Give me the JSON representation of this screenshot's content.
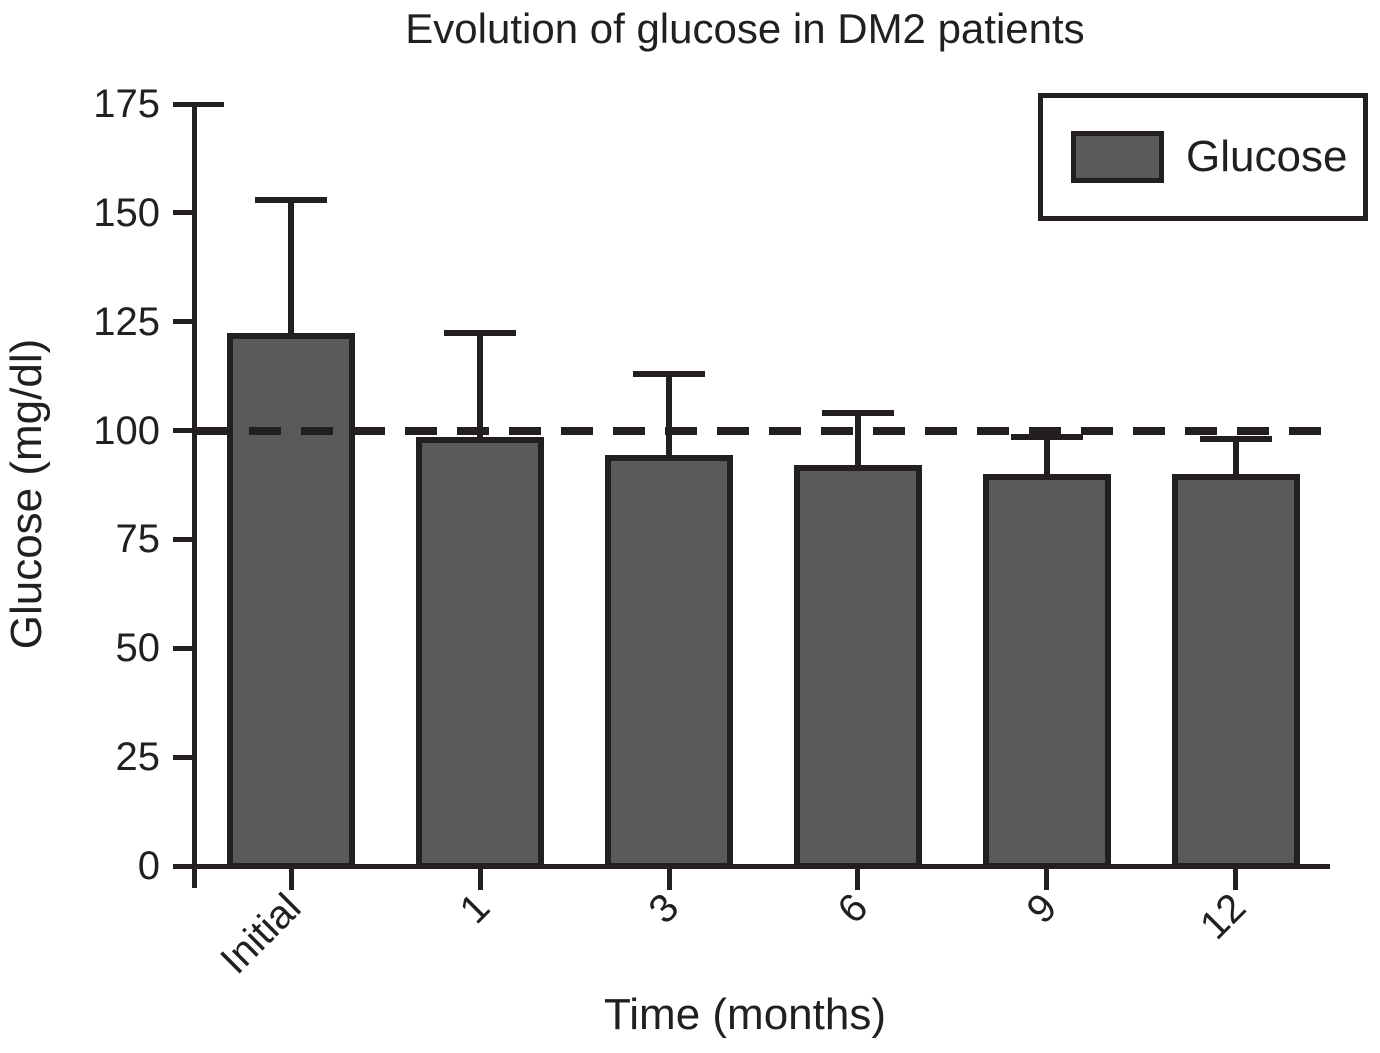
{
  "chart_data": {
    "type": "bar",
    "title": "Evolution of glucose in DM2 patients",
    "xlabel": "Time (months)",
    "ylabel": "Glucose (mg/dl)",
    "categories": [
      "Initial",
      "1",
      "3",
      "6",
      "9",
      "12"
    ],
    "series": [
      {
        "name": "Glucose",
        "values": [
          122.5,
          98.5,
          94.5,
          92,
          90,
          90
        ],
        "error_up": [
          30.5,
          24,
          18.5,
          12,
          8.5,
          8
        ]
      }
    ],
    "ylim": [
      0,
      175
    ],
    "yticks": [
      0,
      25,
      50,
      75,
      100,
      125,
      150,
      175
    ],
    "reference_line": {
      "y": 100,
      "style": "dashed"
    },
    "legend": {
      "position": "top-right",
      "entries": [
        "Glucose"
      ]
    },
    "colors": {
      "bar_fill": "#58595b",
      "ink": "#231f20",
      "background": "#ffffff"
    },
    "grid": false
  }
}
